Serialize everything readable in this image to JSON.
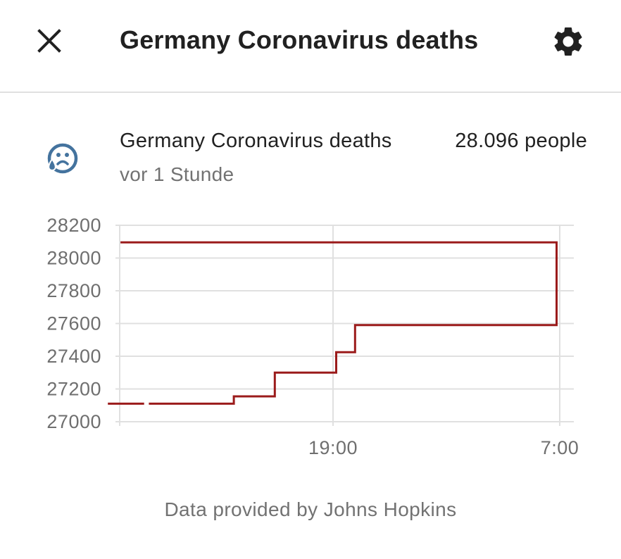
{
  "header": {
    "title": "Germany Coronavirus deaths",
    "close_icon": "close-icon",
    "settings_icon": "gear-icon"
  },
  "entity": {
    "icon": "emoticon-cry-icon",
    "name": "Germany Coronavirus deaths",
    "value": "28.096",
    "unit": "people",
    "last_changed": "vor 1 Stunde"
  },
  "chart_data": {
    "type": "line",
    "step": true,
    "title": "",
    "xlabel": "",
    "ylabel": "",
    "ylim": [
      27000,
      28200
    ],
    "yticks": [
      27000,
      27200,
      27400,
      27600,
      27800,
      28000,
      28200
    ],
    "xticks": [
      "19:00",
      "7:00"
    ],
    "grid": true,
    "color": "#9b1b1b",
    "points": [
      {
        "x": "07:05",
        "y": 27110
      },
      {
        "x": "09:00",
        "y": 27110
      },
      {
        "x": "09:15",
        "y": 27110,
        "gap_before": true
      },
      {
        "x": "13:45",
        "y": 27110
      },
      {
        "x": "13:45",
        "y": 27155
      },
      {
        "x": "15:55",
        "y": 27155
      },
      {
        "x": "15:55",
        "y": 27300
      },
      {
        "x": "19:10",
        "y": 27300
      },
      {
        "x": "19:10",
        "y": 27425
      },
      {
        "x": "20:10",
        "y": 27425
      },
      {
        "x": "20:10",
        "y": 27590
      },
      {
        "x": "06:50",
        "y": 27590
      },
      {
        "x": "06:50",
        "y": 28096
      },
      {
        "x": "07:45",
        "y": 28096
      }
    ]
  },
  "footer": {
    "attribution": "Data provided by Johns Hopkins"
  }
}
